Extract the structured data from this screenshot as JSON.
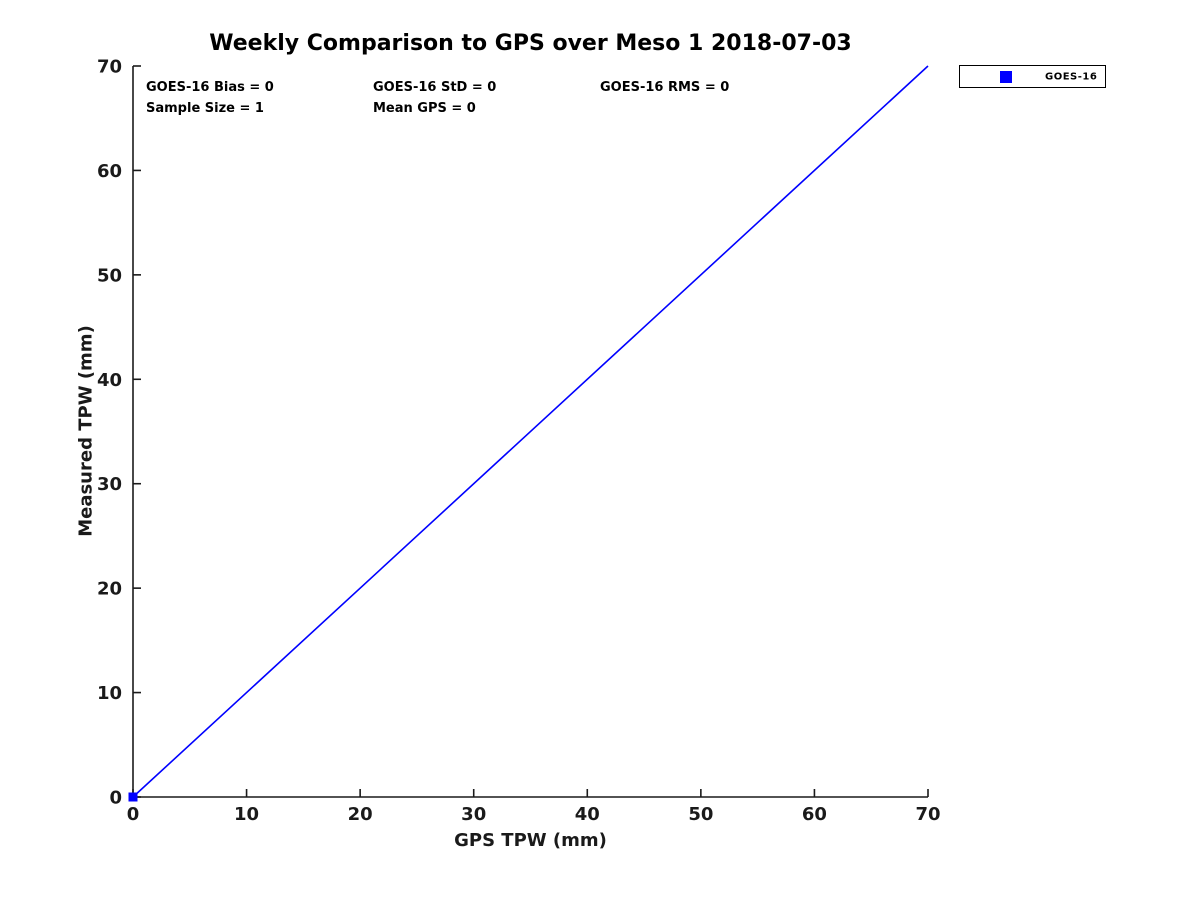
{
  "figure": {
    "title": "Weekly Comparison to GPS over Meso 1 2018-07-03",
    "annotations": {
      "bias": "GOES-16 Bias = 0",
      "std": "GOES-16 StD = 0",
      "rms": "GOES-16 RMS = 0",
      "sample_size": "Sample Size = 1",
      "mean_gps": "Mean GPS = 0"
    },
    "legend": {
      "label": "GOES-16",
      "marker_color": "#0000ff",
      "marker_shape": "square"
    }
  },
  "chart_data": {
    "type": "scatter",
    "title": "Weekly Comparison to GPS over Meso 1 2018-07-03",
    "xlabel": "GPS TPW (mm)",
    "ylabel": "Measured TPW (mm)",
    "xlim": [
      0,
      70
    ],
    "ylim": [
      0,
      70
    ],
    "xticks": [
      0,
      10,
      20,
      30,
      40,
      50,
      60,
      70
    ],
    "yticks": [
      0,
      10,
      20,
      30,
      40,
      50,
      60,
      70
    ],
    "grid": false,
    "legend": {
      "position": "outside-top-right",
      "entries": [
        "GOES-16"
      ]
    },
    "series": [
      {
        "name": "GOES-16",
        "type": "scatter",
        "marker": "square",
        "color": "#0000ff",
        "x": [
          0
        ],
        "y": [
          0
        ]
      }
    ],
    "reference_line": {
      "name": "identity-line",
      "color": "#0000ff",
      "x": [
        0,
        70
      ],
      "y": [
        0,
        70
      ]
    },
    "stats": {
      "goes16_bias": 0,
      "goes16_std": 0,
      "goes16_rms": 0,
      "sample_size": 1,
      "mean_gps": 0
    },
    "style": {
      "axis_color": "#1a1a1a",
      "text_color": "#000000",
      "series_color": "#0000ff",
      "background": "#ffffff"
    }
  }
}
